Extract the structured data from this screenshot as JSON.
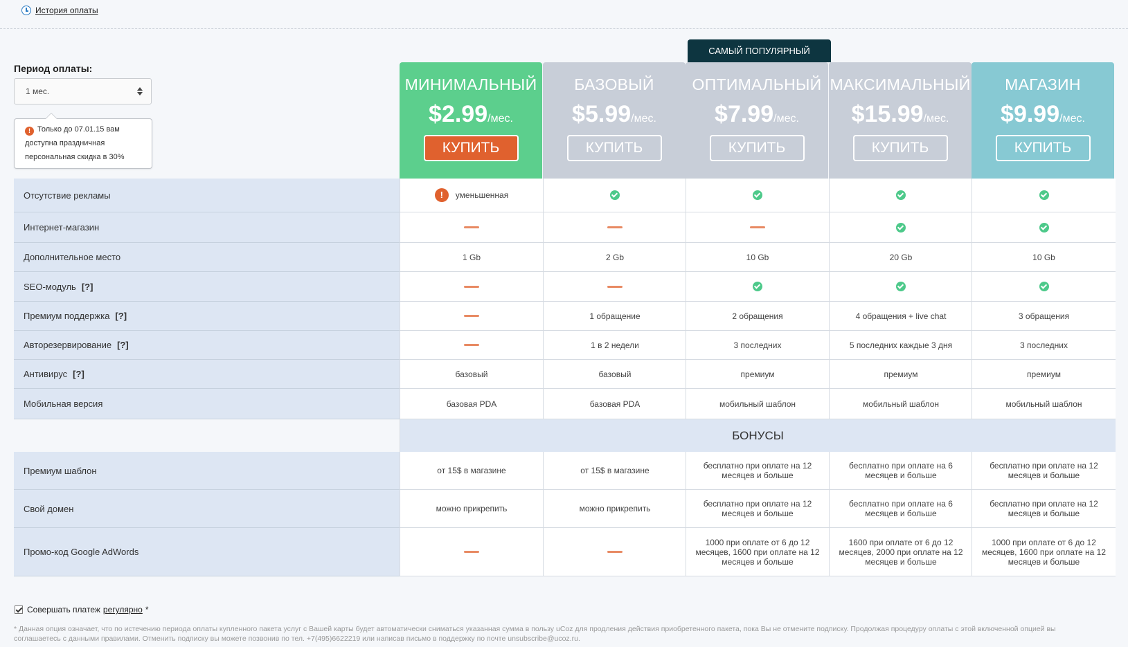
{
  "header": {
    "history_link": "История оплаты"
  },
  "period": {
    "label": "Период оплаты:",
    "selected": "1 мес."
  },
  "promo": {
    "text": "Только до 07.01.15 вам доступна праздничная персональная скидка в 30%"
  },
  "popular_badge": "САМЫЙ ПОПУЛЯРНЫЙ",
  "plans": [
    {
      "name": "МИНИМАЛЬНЫЙ",
      "price": "$2.99",
      "per": "/мес.",
      "buy": "КУПИТЬ",
      "color": "#5ccf8d"
    },
    {
      "name": "БАЗОВЫЙ",
      "price": "$5.99",
      "per": "/мес.",
      "buy": "КУПИТЬ",
      "color": "#c8ced8"
    },
    {
      "name": "ОПТИМАЛЬНЫЙ",
      "price": "$7.99",
      "per": "/мес.",
      "buy": "КУПИТЬ",
      "color": "#c8ced8"
    },
    {
      "name": "МАКСИМАЛЬНЫЙ",
      "price": "$15.99",
      "per": "/мес.",
      "buy": "КУПИТЬ",
      "color": "#c8ced8"
    },
    {
      "name": "МАГАЗИН",
      "price": "$9.99",
      "per": "/мес.",
      "buy": "КУПИТЬ",
      "color": "#87c9d3"
    }
  ],
  "features": [
    {
      "label": "Отсутствие рекламы",
      "help": "",
      "cells": [
        {
          "type": "warn",
          "text": "уменьшенная"
        },
        {
          "type": "check"
        },
        {
          "type": "check"
        },
        {
          "type": "check"
        },
        {
          "type": "check"
        }
      ]
    },
    {
      "label": "Интернет-магазин",
      "help": "",
      "cells": [
        {
          "type": "dash"
        },
        {
          "type": "dash"
        },
        {
          "type": "dash"
        },
        {
          "type": "check"
        },
        {
          "type": "check"
        }
      ]
    },
    {
      "label": "Дополнительное место",
      "help": "",
      "cells": [
        {
          "type": "text",
          "text": "1 Gb"
        },
        {
          "type": "text",
          "text": "2 Gb"
        },
        {
          "type": "text",
          "text": "10 Gb"
        },
        {
          "type": "text",
          "text": "20 Gb"
        },
        {
          "type": "text",
          "text": "10 Gb"
        }
      ]
    },
    {
      "label": "SEO-модуль",
      "help": "[?]",
      "cells": [
        {
          "type": "dash"
        },
        {
          "type": "dash"
        },
        {
          "type": "check"
        },
        {
          "type": "check"
        },
        {
          "type": "check"
        }
      ]
    },
    {
      "label": "Премиум поддержка",
      "help": "[?]",
      "cells": [
        {
          "type": "dash"
        },
        {
          "type": "text",
          "text": "1 обращение"
        },
        {
          "type": "text",
          "text": "2 обращения"
        },
        {
          "type": "text",
          "text": "4 обращения + live chat"
        },
        {
          "type": "text",
          "text": "3 обращения"
        }
      ]
    },
    {
      "label": "Авторезервирование",
      "help": "[?]",
      "cells": [
        {
          "type": "dash"
        },
        {
          "type": "text",
          "text": "1 в 2 недели"
        },
        {
          "type": "text",
          "text": "3 последних"
        },
        {
          "type": "text",
          "text": "5 последних каждые 3 дня"
        },
        {
          "type": "text",
          "text": "3 последних"
        }
      ]
    },
    {
      "label": "Антивирус",
      "help": "[?]",
      "cells": [
        {
          "type": "text",
          "text": "базовый"
        },
        {
          "type": "text",
          "text": "базовый"
        },
        {
          "type": "text",
          "text": "премиум"
        },
        {
          "type": "text",
          "text": "премиум"
        },
        {
          "type": "text",
          "text": "премиум"
        }
      ]
    },
    {
      "label": "Мобильная версия",
      "help": "",
      "cells": [
        {
          "type": "text",
          "text": "базовая PDA"
        },
        {
          "type": "text",
          "text": "базовая PDA"
        },
        {
          "type": "text",
          "text": "мобильный шаблон"
        },
        {
          "type": "text",
          "text": "мобильный шаблон"
        },
        {
          "type": "text",
          "text": "мобильный шаблон"
        }
      ]
    }
  ],
  "bonus_title": "БОНУСЫ",
  "bonuses": [
    {
      "label": "Премиум шаблон",
      "cells": [
        {
          "type": "text",
          "text": "от 15$ в магазине"
        },
        {
          "type": "text",
          "text": "от 15$ в магазине"
        },
        {
          "type": "text",
          "text": "бесплатно при оплате на 12 месяцев и больше"
        },
        {
          "type": "text",
          "text": "бесплатно при оплате на 6 месяцев и больше"
        },
        {
          "type": "text",
          "text": "бесплатно при оплате на 12 месяцев и больше"
        }
      ]
    },
    {
      "label": "Свой домен",
      "cells": [
        {
          "type": "text",
          "text": "можно прикрепить"
        },
        {
          "type": "text",
          "text": "можно прикрепить"
        },
        {
          "type": "text",
          "text": "бесплатно при оплате на 12 месяцев и больше"
        },
        {
          "type": "text",
          "text": "бесплатно при оплате на 6 месяцев и больше"
        },
        {
          "type": "text",
          "text": "бесплатно при оплате на 12 месяцев и больше"
        }
      ]
    },
    {
      "label": "Промо-код Google AdWords",
      "cells": [
        {
          "type": "dash"
        },
        {
          "type": "dash"
        },
        {
          "type": "text",
          "text": "1000 при оплате от 6 до 12 месяцев, 1600 при оплате на 12 месяцев и больше"
        },
        {
          "type": "text",
          "text": "1600 при оплате от 6 до 12 месяцев, 2000 при оплате на 12 месяцев и больше"
        },
        {
          "type": "text",
          "text": "1000 при оплате от 6 до 12 месяцев, 1600 при оплате на 12 месяцев и больше"
        }
      ]
    }
  ],
  "recurring": {
    "checked": true,
    "label": "Совершать платеж",
    "link": "регулярно",
    "asterisk": "*"
  },
  "footnote": "* Данная опция означает, что по истечению периода оплаты купленного пакета услуг с Вашей карты будет автоматически сниматься указанная сумма в пользу uCoz для продления действия приобретенного пакета, пока Вы не отмените подписку. Продолжая процедуру оплаты с этой включенной опцией вы соглашаетесь с данными правилами. Отменить подписку вы можете позвонив по тел. +7(495)6622219 или написав письмо в поддержку по почте unsubscribe@ucoz.ru."
}
